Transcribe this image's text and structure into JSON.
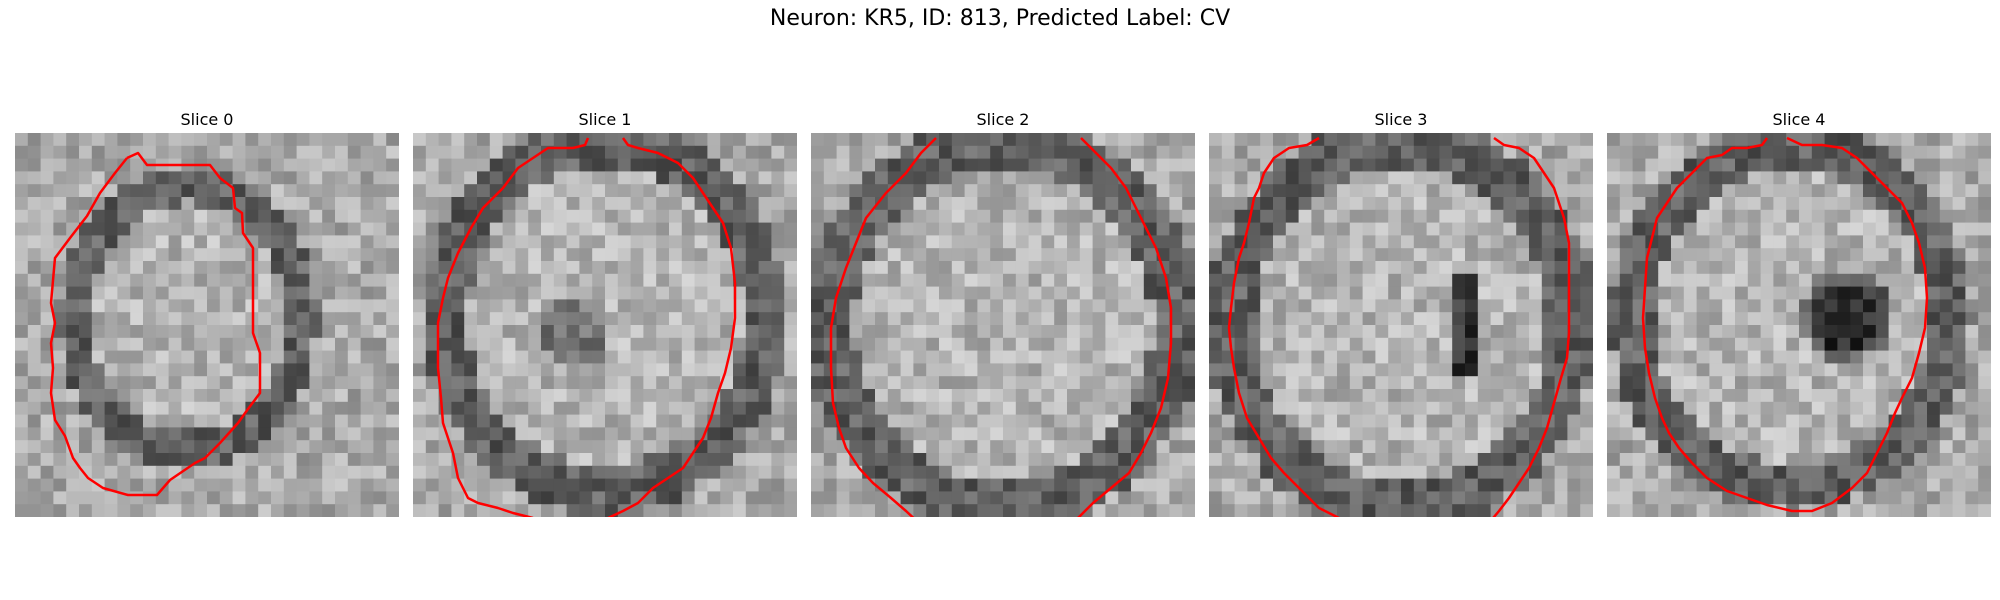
{
  "figure": {
    "title": "Neuron: KR5, ID: 813, Predicted Label: CV"
  },
  "panels": [
    {
      "title": "Slice 0",
      "feature": "none"
    },
    {
      "title": "Slice 1",
      "feature": "faint"
    },
    {
      "title": "Slice 2",
      "feature": "none"
    },
    {
      "title": "Slice 3",
      "feature": "vertical"
    },
    {
      "title": "Slice 4",
      "feature": "blob"
    }
  ],
  "colors": {
    "contour": "#ff0000",
    "background": "#ffffff"
  }
}
